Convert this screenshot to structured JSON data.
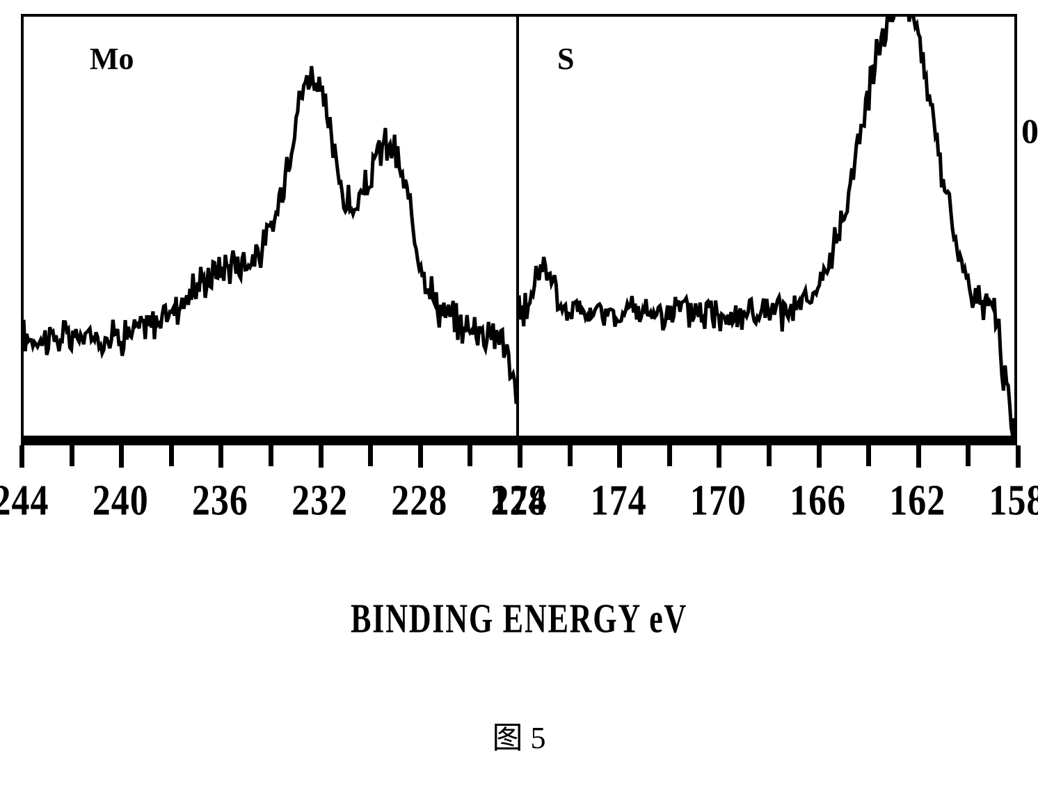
{
  "figure": {
    "caption": "图 5",
    "x_axis_label": "BINDING ENERGY  eV",
    "background_color": "#ffffff",
    "line_color": "#000000",
    "border_color": "#000000",
    "panels": [
      {
        "id": "mo",
        "label": "Mo",
        "xlim": [
          244,
          224
        ],
        "ticks_major": [
          244,
          240,
          236,
          232,
          228,
          224
        ],
        "ticks_minor": [
          242,
          238,
          234,
          230,
          226
        ],
        "tick_labels": [
          "244",
          "240",
          "236",
          "232",
          "228",
          "224"
        ],
        "line_width": 3
      },
      {
        "id": "s",
        "label": "S",
        "xlim": [
          178,
          158
        ],
        "ticks_major": [
          178,
          174,
          170,
          166,
          162,
          158
        ],
        "ticks_minor": [
          176,
          172,
          168,
          164,
          160
        ],
        "tick_labels": [
          "178",
          "174",
          "170",
          "166",
          "162",
          "158"
        ],
        "right_marker": "0",
        "line_width": 3
      }
    ]
  }
}
